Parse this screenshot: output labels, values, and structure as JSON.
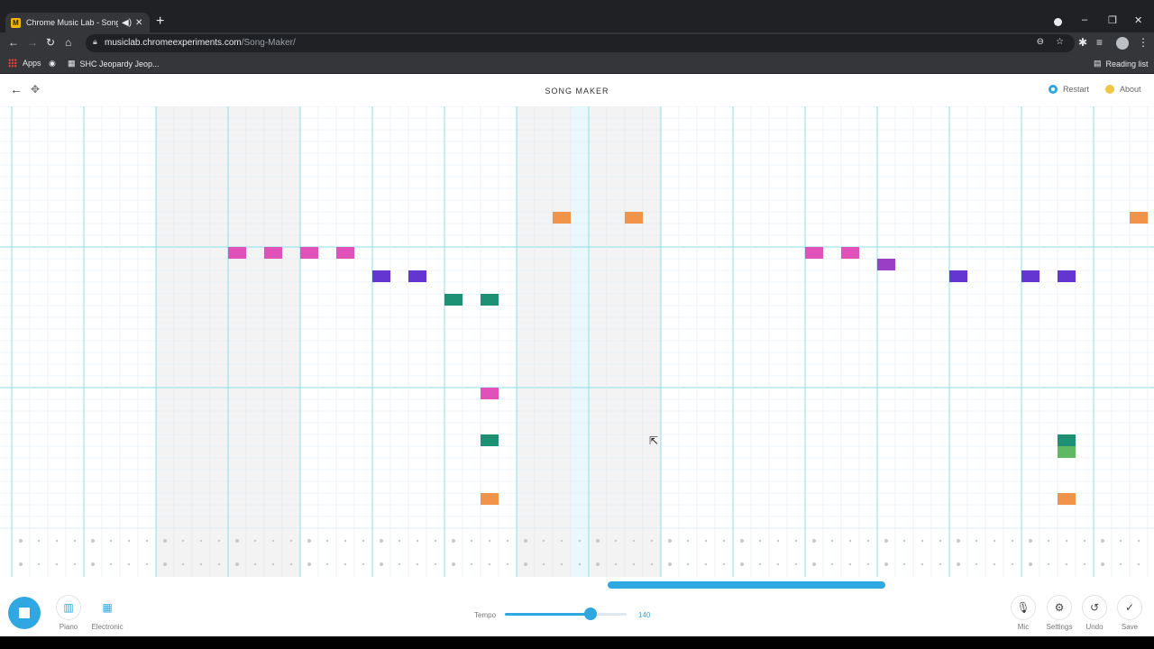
{
  "browser": {
    "tab_title": "Chrome Music Lab - Song M",
    "tab_favicon": "M",
    "url_domain": "musiclab.chromeexperiments.com",
    "url_path": "/Song-Maker/",
    "bookmarks": [
      {
        "label": "Apps",
        "icon": "apps-grid-icon"
      },
      {
        "label": "",
        "icon": "globe-icon"
      },
      {
        "label": "SHC Jeopardy Jeop...",
        "icon": "page-icon"
      }
    ],
    "reading_list": "Reading list"
  },
  "app": {
    "title": "SONG MAKER",
    "restart_label": "Restart",
    "about_label": "About",
    "colors": {
      "accent": "#2fa7e0",
      "pink": "#e052b9",
      "purple": "#6535d2",
      "violet": "#9b3ec6",
      "teal": "#1e9175",
      "orange": "#f0944a",
      "green": "#5fb960",
      "gridline": "#dcecf3",
      "barline": "#8fdcea",
      "shade": "#f3f3f3",
      "highlight": "#e9f8fd"
    },
    "grid": {
      "columns": 64,
      "rows": 36,
      "beats_per_bar": 4,
      "shaded_bars": [
        2,
        3,
        7,
        8
      ],
      "highlight_column": 31,
      "octave_rows": [
        12,
        24
      ],
      "rhythm_rows": 2,
      "notes": [
        {
          "col": 12,
          "row": 12,
          "color": "pink"
        },
        {
          "col": 14,
          "row": 12,
          "color": "pink"
        },
        {
          "col": 16,
          "row": 12,
          "color": "pink"
        },
        {
          "col": 18,
          "row": 12,
          "color": "pink"
        },
        {
          "col": 20,
          "row": 14,
          "color": "purple"
        },
        {
          "col": 22,
          "row": 14,
          "color": "purple"
        },
        {
          "col": 24,
          "row": 16,
          "color": "teal"
        },
        {
          "col": 26,
          "row": 16,
          "color": "teal"
        },
        {
          "col": 26,
          "row": 24,
          "color": "pink"
        },
        {
          "col": 26,
          "row": 28,
          "color": "teal"
        },
        {
          "col": 26,
          "row": 33,
          "color": "orange"
        },
        {
          "col": 30,
          "row": 9,
          "color": "orange"
        },
        {
          "col": 34,
          "row": 9,
          "color": "orange"
        },
        {
          "col": 44,
          "row": 12,
          "color": "pink"
        },
        {
          "col": 46,
          "row": 12,
          "color": "pink"
        },
        {
          "col": 48,
          "row": 13,
          "color": "violet"
        },
        {
          "col": 52,
          "row": 14,
          "color": "purple"
        },
        {
          "col": 56,
          "row": 14,
          "color": "purple"
        },
        {
          "col": 58,
          "row": 14,
          "color": "purple"
        },
        {
          "col": 58,
          "row": 28,
          "color": "teal"
        },
        {
          "col": 58,
          "row": 29,
          "color": "green"
        },
        {
          "col": 58,
          "row": 33,
          "color": "orange"
        },
        {
          "col": 62,
          "row": 9,
          "color": "orange"
        }
      ]
    },
    "controls": {
      "instrument_1": "Piano",
      "instrument_2": "Electronic",
      "tempo_label": "Tempo",
      "tempo_value": "140",
      "tempo_fraction": 0.7,
      "mic_label": "Mic",
      "settings_label": "Settings",
      "undo_label": "Undo",
      "save_label": "Save"
    }
  }
}
